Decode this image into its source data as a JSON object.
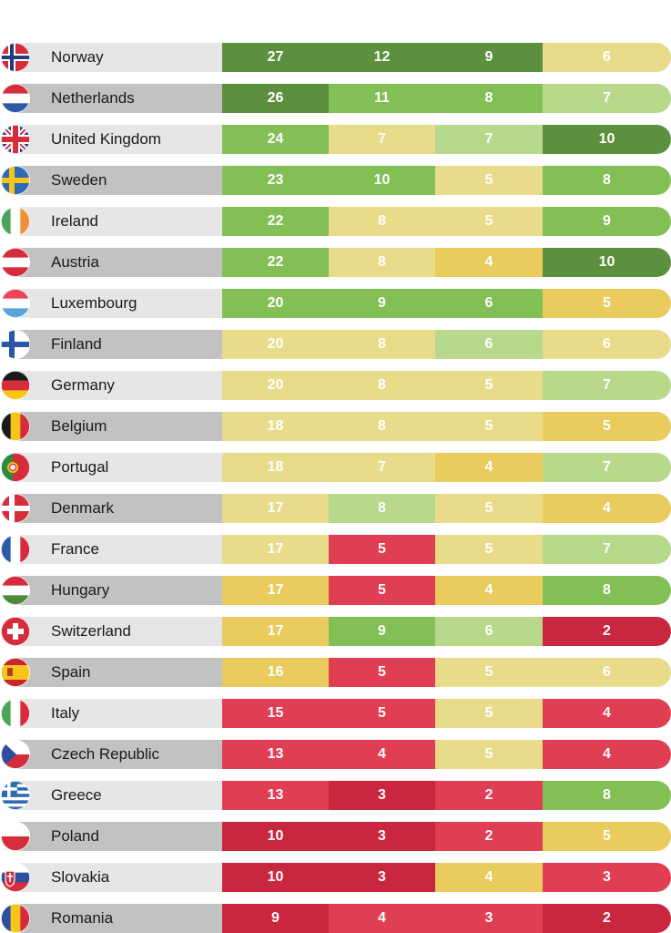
{
  "chart_data": {
    "type": "table",
    "colors": {
      "dark_green": "#5c8f3e",
      "green": "#82c056",
      "light_green": "#b8d88b",
      "light_yellow": "#e8dc8a",
      "yellow": "#e9cb5e",
      "red": "#e03e52",
      "dark_red": "#c9273f"
    },
    "rows": [
      {
        "country": "Norway",
        "flag": "norway-flag-icon",
        "values": [
          27,
          12,
          9,
          6
        ],
        "colors": [
          "dark_green",
          "dark_green",
          "dark_green",
          "light_yellow"
        ]
      },
      {
        "country": "Netherlands",
        "flag": "netherlands-flag-icon",
        "values": [
          26,
          11,
          8,
          7
        ],
        "colors": [
          "dark_green",
          "green",
          "green",
          "light_green"
        ]
      },
      {
        "country": "United Kingdom",
        "flag": "united-kingdom-flag-icon",
        "values": [
          24,
          7,
          7,
          10
        ],
        "colors": [
          "green",
          "light_yellow",
          "light_green",
          "dark_green"
        ]
      },
      {
        "country": "Sweden",
        "flag": "sweden-flag-icon",
        "values": [
          23,
          10,
          5,
          8
        ],
        "colors": [
          "green",
          "green",
          "light_yellow",
          "green"
        ]
      },
      {
        "country": "Ireland",
        "flag": "ireland-flag-icon",
        "values": [
          22,
          8,
          5,
          9
        ],
        "colors": [
          "green",
          "light_yellow",
          "light_yellow",
          "green"
        ]
      },
      {
        "country": "Austria",
        "flag": "austria-flag-icon",
        "values": [
          22,
          8,
          4,
          10
        ],
        "colors": [
          "green",
          "light_yellow",
          "yellow",
          "dark_green"
        ]
      },
      {
        "country": "Luxembourg",
        "flag": "luxembourg-flag-icon",
        "values": [
          20,
          9,
          6,
          5
        ],
        "colors": [
          "green",
          "green",
          "green",
          "yellow"
        ]
      },
      {
        "country": "Finland",
        "flag": "finland-flag-icon",
        "values": [
          20,
          8,
          6,
          6
        ],
        "colors": [
          "light_yellow",
          "light_yellow",
          "light_green",
          "light_yellow"
        ]
      },
      {
        "country": "Germany",
        "flag": "germany-flag-icon",
        "values": [
          20,
          8,
          5,
          7
        ],
        "colors": [
          "light_yellow",
          "light_yellow",
          "light_yellow",
          "light_green"
        ]
      },
      {
        "country": "Belgium",
        "flag": "belgium-flag-icon",
        "values": [
          18,
          8,
          5,
          5
        ],
        "colors": [
          "light_yellow",
          "light_yellow",
          "light_yellow",
          "yellow"
        ]
      },
      {
        "country": "Portugal",
        "flag": "portugal-flag-icon",
        "values": [
          18,
          7,
          4,
          7
        ],
        "colors": [
          "light_yellow",
          "light_yellow",
          "yellow",
          "light_green"
        ]
      },
      {
        "country": "Denmark",
        "flag": "denmark-flag-icon",
        "values": [
          17,
          8,
          5,
          4
        ],
        "colors": [
          "light_yellow",
          "light_green",
          "light_yellow",
          "yellow"
        ]
      },
      {
        "country": "France",
        "flag": "france-flag-icon",
        "values": [
          17,
          5,
          5,
          7
        ],
        "colors": [
          "light_yellow",
          "red",
          "light_yellow",
          "light_green"
        ]
      },
      {
        "country": "Hungary",
        "flag": "hungary-flag-icon",
        "values": [
          17,
          5,
          4,
          8
        ],
        "colors": [
          "yellow",
          "red",
          "yellow",
          "green"
        ]
      },
      {
        "country": "Switzerland",
        "flag": "switzerland-flag-icon",
        "values": [
          17,
          9,
          6,
          2
        ],
        "colors": [
          "yellow",
          "green",
          "light_green",
          "dark_red"
        ]
      },
      {
        "country": "Spain",
        "flag": "spain-flag-icon",
        "values": [
          16,
          5,
          5,
          6
        ],
        "colors": [
          "yellow",
          "red",
          "light_yellow",
          "light_yellow"
        ]
      },
      {
        "country": "Italy",
        "flag": "italy-flag-icon",
        "values": [
          15,
          5,
          5,
          4
        ],
        "colors": [
          "red",
          "red",
          "light_yellow",
          "red"
        ]
      },
      {
        "country": "Czech Republic",
        "flag": "czech-republic-flag-icon",
        "values": [
          13,
          4,
          5,
          4
        ],
        "colors": [
          "red",
          "red",
          "light_yellow",
          "red"
        ]
      },
      {
        "country": "Greece",
        "flag": "greece-flag-icon",
        "values": [
          13,
          3,
          2,
          8
        ],
        "colors": [
          "red",
          "dark_red",
          "red",
          "green"
        ]
      },
      {
        "country": "Poland",
        "flag": "poland-flag-icon",
        "values": [
          10,
          3,
          2,
          5
        ],
        "colors": [
          "dark_red",
          "dark_red",
          "red",
          "yellow"
        ]
      },
      {
        "country": "Slovakia",
        "flag": "slovakia-flag-icon",
        "values": [
          10,
          3,
          4,
          3
        ],
        "colors": [
          "dark_red",
          "dark_red",
          "yellow",
          "red"
        ]
      },
      {
        "country": "Romania",
        "flag": "romania-flag-icon",
        "values": [
          9,
          4,
          3,
          2
        ],
        "colors": [
          "dark_red",
          "red",
          "red",
          "dark_red"
        ]
      }
    ]
  }
}
